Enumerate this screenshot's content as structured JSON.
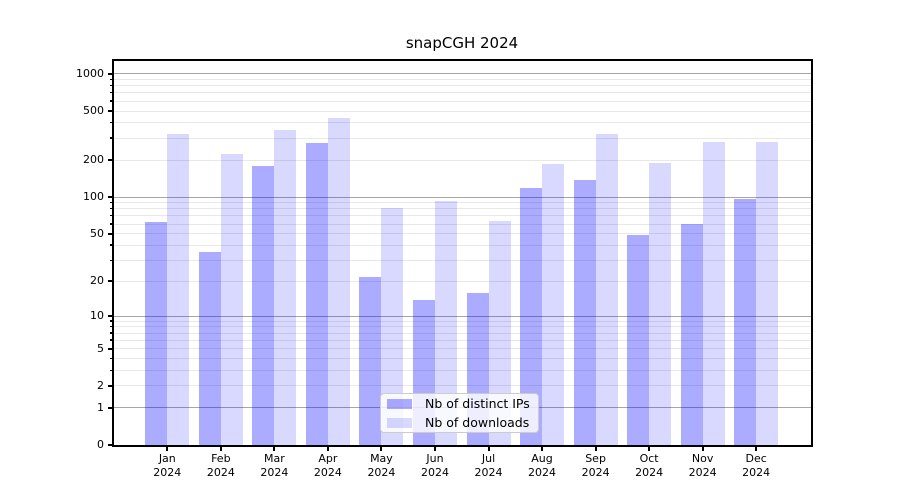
{
  "chart_data": {
    "type": "bar",
    "title": "snapCGH 2024",
    "year_label": "2024",
    "categories": [
      "Jan",
      "Feb",
      "Mar",
      "Apr",
      "May",
      "Jun",
      "Jul",
      "Aug",
      "Sep",
      "Oct",
      "Nov",
      "Dec"
    ],
    "series": [
      {
        "name": "Nb of distinct IPs",
        "color": "rgba(0,0,255,0.33)",
        "values": [
          63,
          35,
          179,
          275,
          22,
          14,
          16,
          118,
          138,
          49,
          60,
          96
        ]
      },
      {
        "name": "Nb of downloads",
        "color": "rgba(0,0,255,0.15)",
        "values": [
          324,
          225,
          351,
          441,
          81,
          93,
          64,
          186,
          326,
          190,
          281,
          283
        ]
      }
    ],
    "yscale": "log1p",
    "ylim": [
      0,
      1180
    ],
    "yticks": [
      0,
      1,
      2,
      5,
      10,
      20,
      50,
      100,
      200,
      500,
      1000
    ],
    "grid": "horizontal major+minor",
    "legend_position": "lower center"
  },
  "colors": {
    "bar_distinct_ips": "rgba(0,0,255,0.33)",
    "bar_downloads": "rgba(0,0,255,0.15)",
    "major_gridline": "#a6a6a6",
    "minor_gridline": "#e8e8e8",
    "axis": "#000000",
    "background": "#ffffff"
  }
}
